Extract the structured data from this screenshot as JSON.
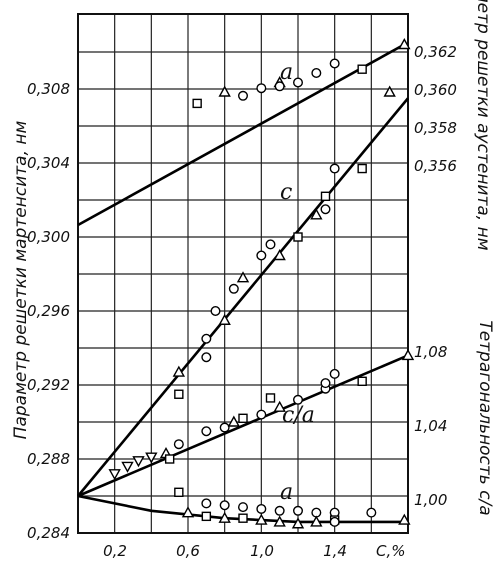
{
  "chart_data": {
    "type": "scatter",
    "x": {
      "label": "C,%",
      "range": [
        0,
        1.8
      ],
      "ticks": [
        "0,2",
        "0,6",
        "1,0",
        "1,4"
      ]
    },
    "y_left": {
      "label": "Параметр решетки мартенсита, нм",
      "range": [
        0.284,
        0.312
      ],
      "ticks": [
        "0,284",
        "0,288",
        "0,292",
        "0,296",
        "0,300",
        "0,304",
        "0,308"
      ]
    },
    "y_right_upper": {
      "label": "Параметр решетки аустенита, нм",
      "ticks": [
        "0,356",
        "0,358",
        "0,360",
        "0,362"
      ]
    },
    "y_right_lower": {
      "label": "Тетрагональность c/a",
      "ticks": [
        "1,00",
        "1,04",
        "1,08"
      ]
    },
    "grid": true,
    "curve_labels": [
      "a",
      "c",
      "c/a",
      "a"
    ],
    "series": [
      {
        "curve": "austenite-a",
        "axis": "right_upper",
        "fit": [
          [
            0,
            0.353
          ],
          [
            1.78,
            0.3625
          ]
        ],
        "points": [
          {
            "m": "square",
            "x": 0.65,
            "y": 0.3594
          },
          {
            "m": "circle",
            "x": 0.9,
            "y": 0.3598
          },
          {
            "m": "triangle",
            "x": 0.8,
            "y": 0.36
          },
          {
            "m": "circle",
            "x": 1.0,
            "y": 0.3602
          },
          {
            "m": "triangle",
            "x": 1.1,
            "y": 0.3605
          },
          {
            "m": "circle",
            "x": 1.2,
            "y": 0.3605
          },
          {
            "m": "circle",
            "x": 1.3,
            "y": 0.361
          },
          {
            "m": "circle",
            "x": 1.4,
            "y": 0.3615
          },
          {
            "m": "square",
            "x": 1.55,
            "y": 0.3612
          },
          {
            "m": "triangle",
            "x": 1.7,
            "y": 0.36
          },
          {
            "m": "triangle",
            "x": 1.78,
            "y": 0.3625
          },
          {
            "m": "circle",
            "x": 1.1,
            "y": 0.3603
          }
        ]
      },
      {
        "curve": "martensite-c",
        "axis": "left",
        "fit": [
          [
            0,
            0.286
          ],
          [
            1.8,
            0.3075
          ]
        ],
        "points": [
          {
            "m": "triangle",
            "x": 0.55,
            "y": 0.2927
          },
          {
            "m": "circle",
            "x": 0.7,
            "y": 0.2945
          },
          {
            "m": "circle",
            "x": 0.7,
            "y": 0.2935
          },
          {
            "m": "circle",
            "x": 0.75,
            "y": 0.296
          },
          {
            "m": "triangle",
            "x": 0.8,
            "y": 0.2955
          },
          {
            "m": "circle",
            "x": 0.85,
            "y": 0.2972
          },
          {
            "m": "triangle",
            "x": 0.9,
            "y": 0.2978
          },
          {
            "m": "circle",
            "x": 1.0,
            "y": 0.299
          },
          {
            "m": "triangle",
            "x": 1.1,
            "y": 0.299
          },
          {
            "m": "circle",
            "x": 1.05,
            "y": 0.2996
          },
          {
            "m": "square",
            "x": 1.2,
            "y": 0.3
          },
          {
            "m": "triangle",
            "x": 1.3,
            "y": 0.3012
          },
          {
            "m": "circle",
            "x": 1.35,
            "y": 0.3015
          },
          {
            "m": "square",
            "x": 1.35,
            "y": 0.3022
          },
          {
            "m": "circle",
            "x": 1.4,
            "y": 0.3037
          },
          {
            "m": "square",
            "x": 1.55,
            "y": 0.3037
          }
        ]
      },
      {
        "curve": "tetragonality-c/a",
        "axis": "left",
        "fit": [
          [
            0,
            0.286
          ],
          [
            1.8,
            0.2936
          ]
        ],
        "points": [
          {
            "m": "inverted-triangle",
            "x": 0.2,
            "y": 0.2872
          },
          {
            "m": "inverted-triangle",
            "x": 0.27,
            "y": 0.2876
          },
          {
            "m": "inverted-triangle",
            "x": 0.33,
            "y": 0.2879
          },
          {
            "m": "inverted-triangle",
            "x": 0.4,
            "y": 0.2881
          },
          {
            "m": "triangle",
            "x": 0.48,
            "y": 0.2883
          },
          {
            "m": "square",
            "x": 0.5,
            "y": 0.288
          },
          {
            "m": "circle",
            "x": 0.55,
            "y": 0.2888
          },
          {
            "m": "square",
            "x": 0.55,
            "y": 0.2915
          },
          {
            "m": "circle",
            "x": 0.7,
            "y": 0.2895
          },
          {
            "m": "circle",
            "x": 0.8,
            "y": 0.2897
          },
          {
            "m": "triangle",
            "x": 0.85,
            "y": 0.29
          },
          {
            "m": "square",
            "x": 0.9,
            "y": 0.2902
          },
          {
            "m": "circle",
            "x": 1.0,
            "y": 0.2904
          },
          {
            "m": "square",
            "x": 1.05,
            "y": 0.2913
          },
          {
            "m": "triangle",
            "x": 1.1,
            "y": 0.2908
          },
          {
            "m": "circle",
            "x": 1.2,
            "y": 0.2912
          },
          {
            "m": "circle",
            "x": 1.35,
            "y": 0.2918
          },
          {
            "m": "circle",
            "x": 1.35,
            "y": 0.2921
          },
          {
            "m": "circle",
            "x": 1.4,
            "y": 0.2926
          },
          {
            "m": "square",
            "x": 1.55,
            "y": 0.2922
          },
          {
            "m": "triangle",
            "x": 1.8,
            "y": 0.2936
          }
        ]
      },
      {
        "curve": "martensite-a",
        "axis": "left",
        "fit": [
          [
            0,
            0.286
          ],
          [
            0.4,
            0.2852
          ],
          [
            0.8,
            0.2848
          ],
          [
            1.2,
            0.2846
          ],
          [
            1.8,
            0.2846
          ]
        ],
        "points": [
          {
            "m": "square",
            "x": 0.55,
            "y": 0.2862
          },
          {
            "m": "circle",
            "x": 0.7,
            "y": 0.2856
          },
          {
            "m": "circle",
            "x": 0.8,
            "y": 0.2855
          },
          {
            "m": "circle",
            "x": 0.9,
            "y": 0.2854
          },
          {
            "m": "circle",
            "x": 1.0,
            "y": 0.2853
          },
          {
            "m": "circle",
            "x": 1.1,
            "y": 0.2852
          },
          {
            "m": "circle",
            "x": 1.2,
            "y": 0.2852
          },
          {
            "m": "circle",
            "x": 1.3,
            "y": 0.2851
          },
          {
            "m": "circle",
            "x": 1.4,
            "y": 0.2851
          },
          {
            "m": "circle",
            "x": 1.6,
            "y": 0.2851
          },
          {
            "m": "triangle",
            "x": 0.6,
            "y": 0.2851
          },
          {
            "m": "square",
            "x": 0.7,
            "y": 0.2849
          },
          {
            "m": "triangle",
            "x": 0.8,
            "y": 0.2848
          },
          {
            "m": "square",
            "x": 0.9,
            "y": 0.2848
          },
          {
            "m": "triangle",
            "x": 1.0,
            "y": 0.2847
          },
          {
            "m": "triangle",
            "x": 1.1,
            "y": 0.2846
          },
          {
            "m": "triangle",
            "x": 1.2,
            "y": 0.2845
          },
          {
            "m": "triangle",
            "x": 1.3,
            "y": 0.2846
          },
          {
            "m": "square",
            "x": 1.4,
            "y": 0.2847
          },
          {
            "m": "circle",
            "x": 1.4,
            "y": 0.2846
          },
          {
            "m": "triangle",
            "x": 1.78,
            "y": 0.2847
          }
        ]
      }
    ]
  }
}
